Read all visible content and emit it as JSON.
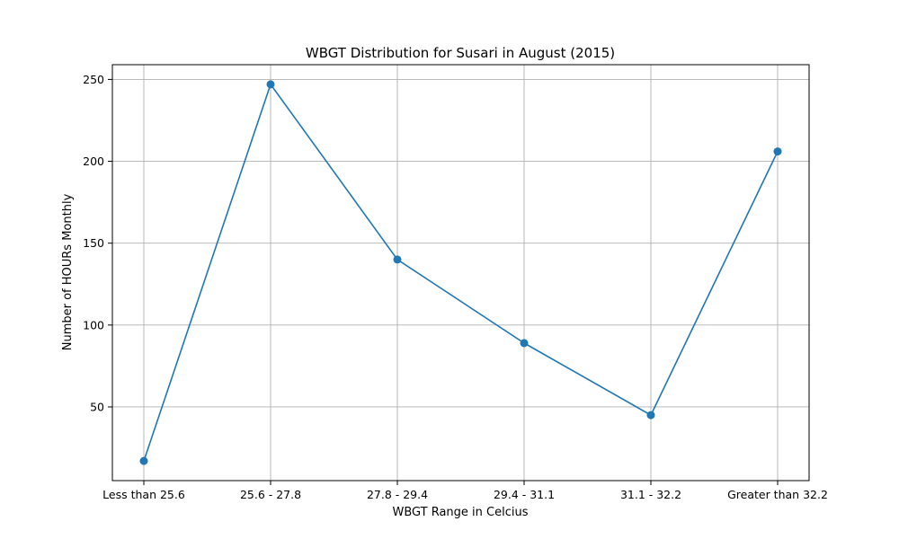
{
  "chart_data": {
    "type": "line",
    "title": "WBGT Distribution for Susari in August (2015)",
    "xlabel": "WBGT Range in Celcius",
    "ylabel": "Number of HOURs Monthly",
    "categories": [
      "Less than 25.6",
      "25.6 - 27.8",
      "27.8 - 29.4",
      "29.4 - 31.1",
      "31.1 - 32.2",
      "Greater than 32.2"
    ],
    "series": [
      {
        "values": [
          17,
          247,
          140,
          89,
          45,
          206
        ],
        "color": "#1f77b4",
        "marker": "circle"
      }
    ],
    "ylim": [
      5,
      259
    ],
    "yticks": [
      50,
      100,
      150,
      200,
      250
    ],
    "grid": true,
    "legend": "none"
  }
}
